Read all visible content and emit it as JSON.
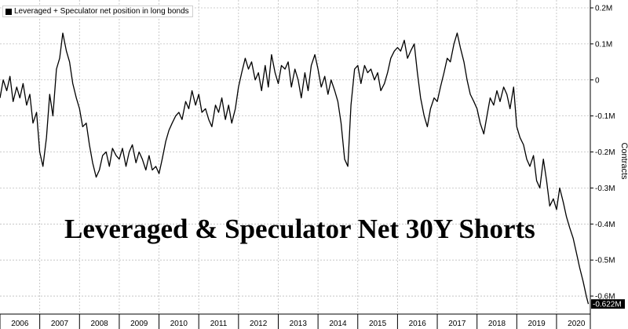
{
  "chart_data": {
    "type": "line",
    "title": "Leveraged & Speculator Net 30Y Shorts",
    "ylabel": "Contracts",
    "ylim": [
      -0.65,
      0.2
    ],
    "xlim": [
      2006.0,
      2020.85
    ],
    "y_ticks": [
      {
        "v": 0.2,
        "label": "0.2M"
      },
      {
        "v": 0.1,
        "label": "0.1M"
      },
      {
        "v": 0.0,
        "label": "0"
      },
      {
        "v": -0.1,
        "label": "-0.1M"
      },
      {
        "v": -0.2,
        "label": "-0.2M"
      },
      {
        "v": -0.3,
        "label": "-0.3M"
      },
      {
        "v": -0.4,
        "label": "-0.4M"
      },
      {
        "v": -0.5,
        "label": "-0.5M"
      },
      {
        "v": -0.6,
        "label": "-0.6M"
      }
    ],
    "x_ticks": [
      "2006",
      "2007",
      "2008",
      "2009",
      "2010",
      "2011",
      "2012",
      "2013",
      "2014",
      "2015",
      "2016",
      "2017",
      "2018",
      "2019",
      "2020"
    ],
    "grid": true,
    "legend_position": "top-left",
    "series": [
      {
        "name": "Leveraged + Speculator net position in long bonds",
        "color": "#000000",
        "last_value_label": "-0.622M",
        "x": [
          2006.0,
          2006.08,
          2006.17,
          2006.25,
          2006.33,
          2006.42,
          2006.5,
          2006.58,
          2006.67,
          2006.75,
          2006.83,
          2006.92,
          2007.0,
          2007.08,
          2007.17,
          2007.25,
          2007.33,
          2007.42,
          2007.5,
          2007.58,
          2007.67,
          2007.75,
          2007.83,
          2007.92,
          2008.0,
          2008.08,
          2008.17,
          2008.25,
          2008.33,
          2008.42,
          2008.5,
          2008.58,
          2008.67,
          2008.75,
          2008.83,
          2008.92,
          2009.0,
          2009.08,
          2009.17,
          2009.25,
          2009.33,
          2009.42,
          2009.5,
          2009.58,
          2009.67,
          2009.75,
          2009.83,
          2009.92,
          2010.0,
          2010.08,
          2010.17,
          2010.25,
          2010.33,
          2010.42,
          2010.5,
          2010.58,
          2010.67,
          2010.75,
          2010.83,
          2010.92,
          2011.0,
          2011.08,
          2011.17,
          2011.25,
          2011.33,
          2011.42,
          2011.5,
          2011.58,
          2011.67,
          2011.75,
          2011.83,
          2011.92,
          2012.0,
          2012.08,
          2012.17,
          2012.25,
          2012.33,
          2012.42,
          2012.5,
          2012.58,
          2012.67,
          2012.75,
          2012.83,
          2012.92,
          2013.0,
          2013.08,
          2013.17,
          2013.25,
          2013.33,
          2013.42,
          2013.5,
          2013.58,
          2013.67,
          2013.75,
          2013.83,
          2013.92,
          2014.0,
          2014.08,
          2014.17,
          2014.25,
          2014.33,
          2014.42,
          2014.5,
          2014.58,
          2014.67,
          2014.75,
          2014.83,
          2014.92,
          2015.0,
          2015.08,
          2015.17,
          2015.25,
          2015.33,
          2015.42,
          2015.5,
          2015.58,
          2015.67,
          2015.75,
          2015.83,
          2015.92,
          2016.0,
          2016.08,
          2016.17,
          2016.25,
          2016.33,
          2016.42,
          2016.5,
          2016.58,
          2016.67,
          2016.75,
          2016.83,
          2016.92,
          2017.0,
          2017.08,
          2017.17,
          2017.25,
          2017.33,
          2017.42,
          2017.5,
          2017.58,
          2017.67,
          2017.75,
          2017.83,
          2017.92,
          2018.0,
          2018.08,
          2018.17,
          2018.25,
          2018.33,
          2018.42,
          2018.5,
          2018.58,
          2018.67,
          2018.75,
          2018.83,
          2018.92,
          2019.0,
          2019.08,
          2019.17,
          2019.25,
          2019.33,
          2019.42,
          2019.5,
          2019.58,
          2019.67,
          2019.75,
          2019.83,
          2019.92,
          2020.0,
          2020.08,
          2020.17,
          2020.25,
          2020.33,
          2020.42,
          2020.5,
          2020.58,
          2020.67,
          2020.75,
          2020.8
        ],
        "y": [
          -0.05,
          0.0,
          -0.03,
          0.01,
          -0.06,
          -0.02,
          -0.05,
          -0.01,
          -0.07,
          -0.04,
          -0.12,
          -0.09,
          -0.2,
          -0.24,
          -0.16,
          -0.04,
          -0.1,
          0.03,
          0.06,
          0.13,
          0.08,
          0.05,
          -0.01,
          -0.05,
          -0.08,
          -0.13,
          -0.12,
          -0.18,
          -0.23,
          -0.27,
          -0.25,
          -0.21,
          -0.2,
          -0.24,
          -0.19,
          -0.21,
          -0.22,
          -0.19,
          -0.24,
          -0.2,
          -0.18,
          -0.23,
          -0.2,
          -0.22,
          -0.25,
          -0.21,
          -0.25,
          -0.24,
          -0.26,
          -0.22,
          -0.17,
          -0.14,
          -0.12,
          -0.1,
          -0.09,
          -0.11,
          -0.06,
          -0.08,
          -0.03,
          -0.07,
          -0.04,
          -0.09,
          -0.08,
          -0.11,
          -0.13,
          -0.07,
          -0.09,
          -0.05,
          -0.11,
          -0.07,
          -0.12,
          -0.08,
          -0.02,
          0.02,
          0.06,
          0.03,
          0.05,
          0.0,
          0.02,
          -0.03,
          0.04,
          -0.02,
          0.07,
          0.02,
          -0.01,
          0.04,
          0.03,
          0.05,
          -0.02,
          0.03,
          0.0,
          -0.05,
          0.02,
          -0.03,
          0.04,
          0.07,
          0.03,
          -0.02,
          0.01,
          -0.04,
          0.0,
          -0.03,
          -0.06,
          -0.12,
          -0.22,
          -0.24,
          -0.07,
          0.03,
          0.04,
          -0.01,
          0.04,
          0.02,
          0.03,
          0.0,
          0.02,
          -0.03,
          -0.01,
          0.02,
          0.06,
          0.08,
          0.09,
          0.08,
          0.11,
          0.06,
          0.08,
          0.1,
          0.02,
          -0.05,
          -0.1,
          -0.13,
          -0.08,
          -0.05,
          -0.06,
          -0.02,
          0.02,
          0.06,
          0.05,
          0.1,
          0.13,
          0.09,
          0.05,
          0.0,
          -0.04,
          -0.06,
          -0.08,
          -0.12,
          -0.15,
          -0.1,
          -0.05,
          -0.07,
          -0.03,
          -0.06,
          -0.02,
          -0.04,
          -0.08,
          -0.02,
          -0.13,
          -0.16,
          -0.18,
          -0.22,
          -0.24,
          -0.21,
          -0.28,
          -0.3,
          -0.22,
          -0.28,
          -0.35,
          -0.33,
          -0.36,
          -0.3,
          -0.34,
          -0.38,
          -0.41,
          -0.44,
          -0.48,
          -0.52,
          -0.56,
          -0.6,
          -0.622
        ]
      }
    ]
  }
}
